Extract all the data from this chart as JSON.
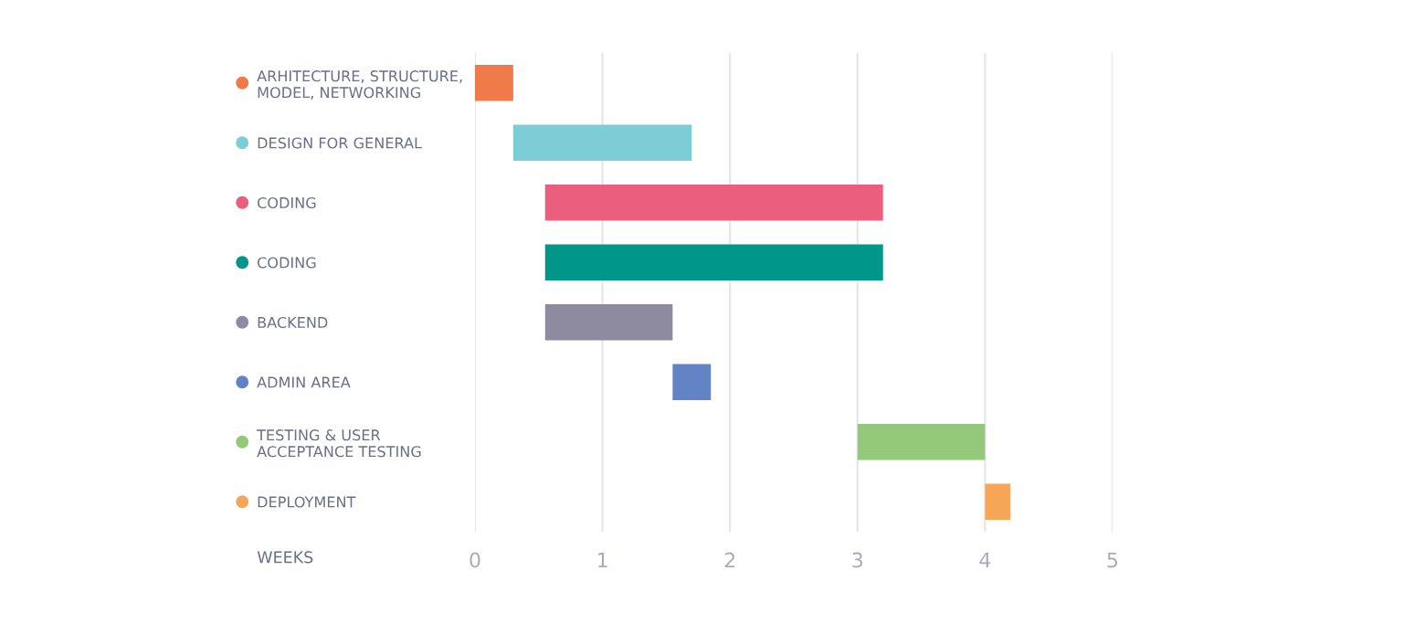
{
  "chart_data": {
    "type": "bar",
    "orientation": "horizontal",
    "xlabel": "WEEKS",
    "categories": [
      "ARHITECTURE, STRUCTURE,\nMODEL, NETWORKING",
      "DESIGN FOR GENERAL",
      "CODING",
      "CODING",
      "BACKEND",
      "ADMIN AREA",
      "TESTING & USER\nACCEPTANCE TESTING",
      "DEPLOYMENT"
    ],
    "base": [
      0,
      0.3,
      0.55,
      0.55,
      0.55,
      1.55,
      3,
      4
    ],
    "values": [
      0.3,
      1.4,
      2.65,
      2.65,
      1.0,
      0.3,
      1,
      0.2
    ],
    "colors": [
      "#f07b4a",
      "#7dcdd7",
      "#ec5e7e",
      "#00968a",
      "#8e8aa0",
      "#6283c6",
      "#93c978",
      "#f7a657"
    ],
    "xlim": [
      0,
      5
    ],
    "xticks": [
      0,
      1,
      2,
      3,
      4,
      5
    ],
    "grid": "x"
  }
}
